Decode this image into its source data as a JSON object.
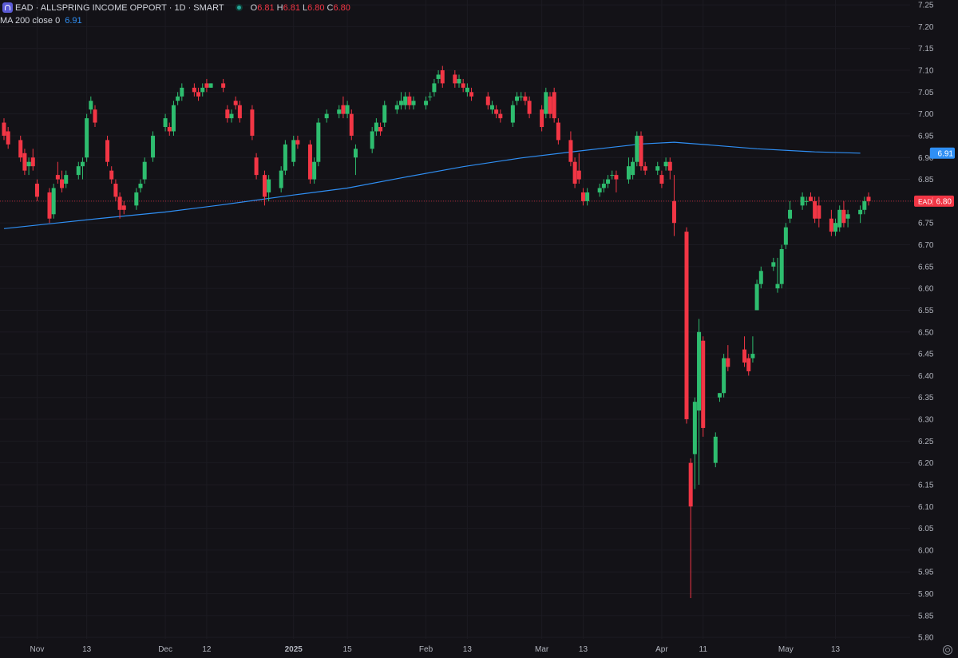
{
  "header": {
    "symbol_title": "EAD · ALLSPRING INCOME OPPORT · 1D · SMART",
    "ohlc": [
      {
        "key": "O",
        "value": "6.81"
      },
      {
        "key": "H",
        "value": "6.81"
      },
      {
        "key": "L",
        "value": "6.80"
      },
      {
        "key": "C",
        "value": "6.80"
      }
    ],
    "ma_label": "MA 200 close 0",
    "ma_value": "6.91"
  },
  "colors": {
    "background": "#131217",
    "up": "#2ebd6f",
    "down": "#f23645",
    "ma_line": "#2f8ff4",
    "grid": "#1c1b22",
    "axis_text": "#b2b5be"
  },
  "chart_data": {
    "type": "candlestick",
    "title": "",
    "xlabel": "",
    "ylabel": "",
    "ylim": [
      5.76,
      7.26
    ],
    "y_ticks": [
      "7.25",
      "7.20",
      "7.15",
      "7.10",
      "7.05",
      "7.00",
      "6.95",
      "6.90",
      "6.85",
      "6.80",
      "6.75",
      "6.70",
      "6.65",
      "6.60",
      "6.55",
      "6.50",
      "6.45",
      "6.40",
      "6.35",
      "6.30",
      "6.25",
      "6.20",
      "6.15",
      "6.10",
      "6.05",
      "6.00",
      "5.95",
      "5.90",
      "5.85",
      "5.80"
    ],
    "x_ticks": [
      {
        "label": "Nov",
        "date": "2024-11-01"
      },
      {
        "label": "13",
        "date": "2024-11-13"
      },
      {
        "label": "Dec",
        "date": "2024-12-02"
      },
      {
        "label": "12",
        "date": "2024-12-12"
      },
      {
        "label": "2025",
        "date": "2025-01-02"
      },
      {
        "label": "15",
        "date": "2025-01-15"
      },
      {
        "label": "Feb",
        "date": "2025-02-03"
      },
      {
        "label": "13",
        "date": "2025-02-13"
      },
      {
        "label": "Mar",
        "date": "2025-03-03"
      },
      {
        "label": "13",
        "date": "2025-03-13"
      },
      {
        "label": "Apr",
        "date": "2025-04-01"
      },
      {
        "label": "11",
        "date": "2025-04-11"
      },
      {
        "label": "May",
        "date": "2025-05-01"
      },
      {
        "label": "13",
        "date": "2025-05-13"
      }
    ],
    "last_price": {
      "label": "EAD",
      "value": 6.8
    },
    "ma": {
      "name": "MA 200 close 0",
      "last": 6.91
    },
    "ma_points": [
      [
        "2024-10-24",
        6.737
      ],
      [
        "2024-11-05",
        6.749
      ],
      [
        "2024-11-18",
        6.762
      ],
      [
        "2024-12-02",
        6.775
      ],
      [
        "2024-12-16",
        6.792
      ],
      [
        "2025-01-02",
        6.814
      ],
      [
        "2025-01-15",
        6.83
      ],
      [
        "2025-01-29",
        6.855
      ],
      [
        "2025-02-12",
        6.879
      ],
      [
        "2025-02-26",
        6.899
      ],
      [
        "2025-03-12",
        6.915
      ],
      [
        "2025-03-27",
        6.931
      ],
      [
        "2025-04-04",
        6.935
      ],
      [
        "2025-04-11",
        6.93
      ],
      [
        "2025-04-24",
        6.92
      ],
      [
        "2025-05-08",
        6.913
      ],
      [
        "2025-05-19",
        6.91
      ]
    ],
    "candles": [
      [
        "2024-10-24",
        6.98,
        6.99,
        6.94,
        6.95
      ],
      [
        "2024-10-25",
        6.96,
        6.97,
        6.92,
        6.93
      ],
      [
        "2024-10-28",
        6.94,
        6.95,
        6.89,
        6.9
      ],
      [
        "2024-10-29",
        6.91,
        6.92,
        6.86,
        6.87
      ],
      [
        "2024-10-30",
        6.88,
        6.9,
        6.86,
        6.89
      ],
      [
        "2024-10-31",
        6.9,
        6.92,
        6.87,
        6.88
      ],
      [
        "2024-11-01",
        6.84,
        6.85,
        6.8,
        6.81
      ],
      [
        "2024-11-04",
        6.82,
        6.83,
        6.75,
        6.76
      ],
      [
        "2024-11-05",
        6.77,
        6.84,
        6.76,
        6.83
      ],
      [
        "2024-11-06",
        6.86,
        6.89,
        6.84,
        6.85
      ],
      [
        "2024-11-07",
        6.85,
        6.87,
        6.82,
        6.83
      ],
      [
        "2024-11-08",
        6.84,
        6.87,
        6.83,
        6.86
      ],
      [
        "2024-11-11",
        6.86,
        6.89,
        6.85,
        6.88
      ],
      [
        "2024-11-12",
        6.88,
        6.9,
        6.85,
        6.89
      ],
      [
        "2024-11-13",
        6.9,
        7.0,
        6.89,
        6.99
      ],
      [
        "2024-11-14",
        7.01,
        7.04,
        7.0,
        7.03
      ],
      [
        "2024-11-15",
        7.01,
        7.02,
        6.97,
        6.98
      ],
      [
        "2024-11-18",
        6.94,
        6.95,
        6.88,
        6.89
      ],
      [
        "2024-11-19",
        6.87,
        6.88,
        6.84,
        6.85
      ],
      [
        "2024-11-20",
        6.84,
        6.85,
        6.8,
        6.81
      ],
      [
        "2024-11-21",
        6.81,
        6.82,
        6.76,
        6.78
      ],
      [
        "2024-11-22",
        6.79,
        6.8,
        6.77,
        6.78
      ],
      [
        "2024-11-25",
        6.79,
        6.83,
        6.78,
        6.82
      ],
      [
        "2024-11-26",
        6.83,
        6.85,
        6.82,
        6.84
      ],
      [
        "2024-11-27",
        6.85,
        6.9,
        6.84,
        6.89
      ],
      [
        "2024-11-29",
        6.9,
        6.96,
        6.89,
        6.95
      ],
      [
        "2024-12-02",
        6.97,
        7.0,
        6.96,
        6.99
      ],
      [
        "2024-12-03",
        6.97,
        6.98,
        6.95,
        6.96
      ],
      [
        "2024-12-04",
        6.96,
        7.03,
        6.95,
        7.02
      ],
      [
        "2024-12-05",
        7.03,
        7.05,
        7.02,
        7.04
      ],
      [
        "2024-12-06",
        7.04,
        7.07,
        7.03,
        7.06
      ],
      [
        "2024-12-09",
        7.06,
        7.07,
        7.04,
        7.05
      ],
      [
        "2024-12-10",
        7.05,
        7.06,
        7.03,
        7.04
      ],
      [
        "2024-12-11",
        7.05,
        7.07,
        7.04,
        7.06
      ],
      [
        "2024-12-12",
        7.07,
        7.08,
        7.05,
        7.06
      ],
      [
        "2024-12-13",
        7.06,
        7.07,
        7.06,
        7.07
      ],
      [
        "2024-12-16",
        7.07,
        7.08,
        7.05,
        7.06
      ],
      [
        "2024-12-17",
        7.01,
        7.02,
        6.98,
        6.99
      ],
      [
        "2024-12-18",
        6.99,
        7.01,
        6.98,
        7.0
      ],
      [
        "2024-12-19",
        7.03,
        7.04,
        7.01,
        7.02
      ],
      [
        "2024-12-20",
        7.02,
        7.03,
        6.98,
        6.99
      ],
      [
        "2024-12-23",
        7.01,
        7.02,
        6.94,
        6.95
      ],
      [
        "2024-12-24",
        6.9,
        6.91,
        6.85,
        6.86
      ],
      [
        "2024-12-26",
        6.86,
        6.87,
        6.79,
        6.81
      ],
      [
        "2024-12-27",
        6.82,
        6.86,
        6.8,
        6.85
      ],
      [
        "2024-12-30",
        6.83,
        6.88,
        6.82,
        6.87
      ],
      [
        "2024-12-31",
        6.87,
        6.94,
        6.86,
        6.93
      ],
      [
        "2025-01-02",
        6.89,
        6.95,
        6.88,
        6.94
      ],
      [
        "2025-01-03",
        6.94,
        6.95,
        6.92,
        6.93
      ],
      [
        "2025-01-06",
        6.93,
        6.94,
        6.84,
        6.85
      ],
      [
        "2025-01-07",
        6.85,
        6.9,
        6.84,
        6.89
      ],
      [
        "2025-01-08",
        6.89,
        6.99,
        6.88,
        6.98
      ],
      [
        "2025-01-10",
        6.99,
        7.01,
        6.98,
        7.0
      ],
      [
        "2025-01-13",
        7.0,
        7.02,
        6.99,
        7.01
      ],
      [
        "2025-01-14",
        7.02,
        7.04,
        6.99,
        7.0
      ],
      [
        "2025-01-15",
        7.0,
        7.03,
        6.99,
        7.02
      ],
      [
        "2025-01-16",
        7.0,
        7.01,
        6.94,
        6.95
      ],
      [
        "2025-01-17",
        6.9,
        6.93,
        6.86,
        6.92
      ],
      [
        "2025-01-21",
        6.92,
        6.97,
        6.91,
        6.96
      ],
      [
        "2025-01-22",
        6.96,
        6.99,
        6.95,
        6.98
      ],
      [
        "2025-01-23",
        6.97,
        6.98,
        6.95,
        6.96
      ],
      [
        "2025-01-24",
        6.98,
        7.03,
        6.97,
        7.02
      ],
      [
        "2025-01-27",
        7.01,
        7.03,
        7.0,
        7.02
      ],
      [
        "2025-01-28",
        7.02,
        7.05,
        7.01,
        7.03
      ],
      [
        "2025-01-29",
        7.02,
        7.05,
        7.01,
        7.04
      ],
      [
        "2025-01-30",
        7.04,
        7.05,
        7.01,
        7.02
      ],
      [
        "2025-01-31",
        7.02,
        7.04,
        7.01,
        7.03
      ],
      [
        "2025-02-03",
        7.02,
        7.04,
        7.01,
        7.03
      ],
      [
        "2025-02-04",
        7.04,
        7.05,
        7.03,
        7.04
      ],
      [
        "2025-02-05",
        7.05,
        7.08,
        7.04,
        7.07
      ],
      [
        "2025-02-06",
        7.08,
        7.1,
        7.07,
        7.09
      ],
      [
        "2025-02-07",
        7.1,
        7.11,
        7.06,
        7.07
      ],
      [
        "2025-02-10",
        7.09,
        7.1,
        7.06,
        7.07
      ],
      [
        "2025-02-11",
        7.07,
        7.09,
        7.06,
        7.08
      ],
      [
        "2025-02-12",
        7.07,
        7.08,
        7.05,
        7.06
      ],
      [
        "2025-02-13",
        7.05,
        7.07,
        7.04,
        7.06
      ],
      [
        "2025-02-14",
        7.05,
        7.06,
        7.03,
        7.04
      ],
      [
        "2025-02-18",
        7.04,
        7.05,
        7.01,
        7.02
      ],
      [
        "2025-02-19",
        7.01,
        7.03,
        7.0,
        7.02
      ],
      [
        "2025-02-20",
        7.01,
        7.02,
        6.99,
        7.0
      ],
      [
        "2025-02-21",
        7.0,
        7.01,
        6.98,
        6.99
      ],
      [
        "2025-02-24",
        6.98,
        7.03,
        6.97,
        7.02
      ],
      [
        "2025-02-25",
        7.03,
        7.05,
        7.02,
        7.04
      ],
      [
        "2025-02-26",
        7.04,
        7.05,
        7.03,
        7.04
      ],
      [
        "2025-02-27",
        7.04,
        7.05,
        7.02,
        7.03
      ],
      [
        "2025-02-28",
        7.03,
        7.04,
        6.99,
        7.0
      ],
      [
        "2025-03-03",
        7.01,
        7.02,
        6.96,
        6.97
      ],
      [
        "2025-03-04",
        7.0,
        7.06,
        6.99,
        7.05
      ],
      [
        "2025-03-05",
        7.04,
        7.05,
        6.99,
        7.0
      ],
      [
        "2025-03-06",
        7.05,
        7.06,
        6.98,
        6.99
      ],
      [
        "2025-03-07",
        6.98,
        6.99,
        6.93,
        6.94
      ],
      [
        "2025-03-10",
        6.94,
        6.96,
        6.88,
        6.89
      ],
      [
        "2025-03-11",
        6.89,
        6.9,
        6.83,
        6.84
      ],
      [
        "2025-03-12",
        6.87,
        6.91,
        6.84,
        6.85
      ],
      [
        "2025-03-13",
        6.82,
        6.83,
        6.79,
        6.8
      ],
      [
        "2025-03-14",
        6.8,
        6.83,
        6.79,
        6.82
      ],
      [
        "2025-03-17",
        6.82,
        6.84,
        6.81,
        6.83
      ],
      [
        "2025-03-18",
        6.83,
        6.85,
        6.82,
        6.84
      ],
      [
        "2025-03-19",
        6.84,
        6.86,
        6.83,
        6.85
      ],
      [
        "2025-03-20",
        6.86,
        6.87,
        6.85,
        6.86
      ],
      [
        "2025-03-21",
        6.86,
        6.87,
        6.82,
        6.85
      ],
      [
        "2025-03-24",
        6.85,
        6.9,
        6.84,
        6.88
      ],
      [
        "2025-03-25",
        6.86,
        6.9,
        6.85,
        6.89
      ],
      [
        "2025-03-26",
        6.89,
        6.96,
        6.88,
        6.95
      ],
      [
        "2025-03-27",
        6.95,
        6.96,
        6.87,
        6.88
      ],
      [
        "2025-03-28",
        6.88,
        6.89,
        6.86,
        6.87
      ],
      [
        "2025-03-31",
        6.87,
        6.89,
        6.86,
        6.88
      ],
      [
        "2025-04-01",
        6.86,
        6.87,
        6.83,
        6.84
      ],
      [
        "2025-04-02",
        6.88,
        6.9,
        6.87,
        6.89
      ],
      [
        "2025-04-03",
        6.89,
        6.9,
        6.85,
        6.87
      ],
      [
        "2025-04-04",
        6.8,
        6.86,
        6.72,
        6.75
      ],
      [
        "2025-04-07",
        6.73,
        6.74,
        6.29,
        6.3
      ],
      [
        "2025-04-08",
        6.2,
        6.21,
        5.89,
        6.1
      ],
      [
        "2025-04-09",
        6.22,
        6.35,
        6.14,
        6.34
      ],
      [
        "2025-04-10",
        6.32,
        6.53,
        6.15,
        6.5
      ],
      [
        "2025-04-11",
        6.48,
        6.49,
        6.26,
        6.28
      ],
      [
        "2025-04-14",
        6.2,
        6.27,
        6.19,
        6.26
      ],
      [
        "2025-04-15",
        6.35,
        6.36,
        6.34,
        6.36
      ],
      [
        "2025-04-16",
        6.36,
        6.45,
        6.35,
        6.44
      ],
      [
        "2025-04-17",
        6.44,
        6.47,
        6.41,
        6.42
      ],
      [
        "2025-04-21",
        6.46,
        6.49,
        6.42,
        6.43
      ],
      [
        "2025-04-22",
        6.44,
        6.45,
        6.4,
        6.41
      ],
      [
        "2025-04-23",
        6.44,
        6.49,
        6.43,
        6.45
      ],
      [
        "2025-04-24",
        6.55,
        6.62,
        6.55,
        6.61
      ],
      [
        "2025-04-25",
        6.61,
        6.65,
        6.6,
        6.64
      ],
      [
        "2025-04-28",
        6.65,
        6.67,
        6.64,
        6.66
      ],
      [
        "2025-04-29",
        6.6,
        6.67,
        6.59,
        6.61
      ],
      [
        "2025-04-30",
        6.61,
        6.7,
        6.6,
        6.69
      ],
      [
        "2025-05-01",
        6.7,
        6.75,
        6.69,
        6.74
      ],
      [
        "2025-05-02",
        6.76,
        6.8,
        6.75,
        6.78
      ],
      [
        "2025-05-05",
        6.79,
        6.82,
        6.78,
        6.81
      ],
      [
        "2025-05-06",
        6.8,
        6.81,
        6.79,
        6.8
      ],
      [
        "2025-05-07",
        6.81,
        6.82,
        6.8,
        6.8
      ],
      [
        "2025-05-08",
        6.8,
        6.81,
        6.75,
        6.76
      ],
      [
        "2025-05-09",
        6.79,
        6.81,
        6.74,
        6.76
      ],
      [
        "2025-05-12",
        6.76,
        6.78,
        6.72,
        6.73
      ],
      [
        "2025-05-13",
        6.73,
        6.76,
        6.72,
        6.75
      ],
      [
        "2025-05-14",
        6.74,
        6.79,
        6.73,
        6.78
      ],
      [
        "2025-05-15",
        6.78,
        6.8,
        6.74,
        6.75
      ],
      [
        "2025-05-16",
        6.76,
        6.78,
        6.74,
        6.77
      ],
      [
        "2025-05-19",
        6.77,
        6.79,
        6.75,
        6.78
      ],
      [
        "2025-05-20",
        6.78,
        6.81,
        6.77,
        6.8
      ],
      [
        "2025-05-21",
        6.81,
        6.82,
        6.79,
        6.8
      ]
    ]
  }
}
